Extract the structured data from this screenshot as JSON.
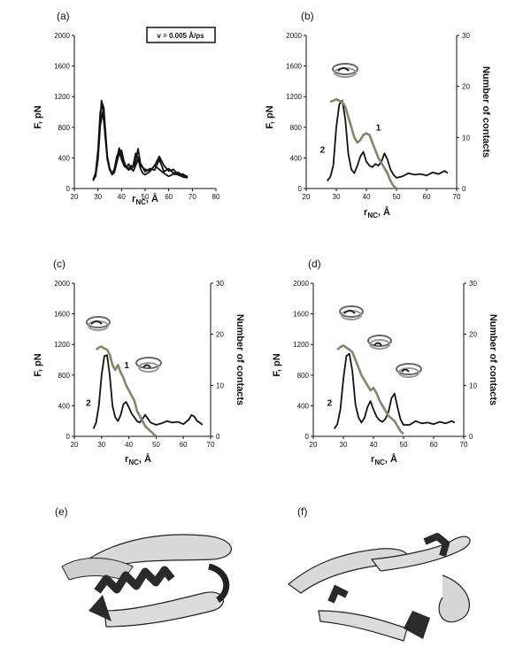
{
  "panel_labels": [
    "(a)",
    "(b)",
    "(c)",
    "(d)",
    "(e)",
    "(f)"
  ],
  "legend_box": "v = 0.005 Å/ps",
  "axes": {
    "force_label": "F, pN",
    "contacts_label": "Number of contacts",
    "x_label_main": "r",
    "x_label_sub": "NC",
    "x_label_tail": ", Å"
  },
  "curve_labels": {
    "one": "1",
    "two": "2"
  },
  "colors": {
    "force": "#111111",
    "contacts": "#7d8a6a",
    "ribbon": "#d6d6d6",
    "helix": "#2a2a2a"
  },
  "chart_data": [
    {
      "panel": "(a)",
      "type": "line",
      "xlim": [
        20,
        80
      ],
      "xticks": [
        20,
        30,
        40,
        50,
        60,
        70,
        80
      ],
      "ylim": [
        0,
        2000
      ],
      "yticks": [
        0,
        400,
        800,
        1200,
        1600,
        2000
      ],
      "series": [
        {
          "x": [
            28,
            29,
            30,
            31,
            31.5,
            32,
            33,
            34,
            35,
            36,
            37,
            38,
            39,
            40,
            41,
            42,
            43,
            44,
            45,
            46,
            47,
            48,
            49,
            50,
            52,
            54,
            56,
            58,
            60,
            62,
            64,
            66,
            68
          ],
          "y": [
            100,
            180,
            420,
            900,
            1150,
            1080,
            700,
            380,
            240,
            190,
            260,
            420,
            490,
            380,
            300,
            270,
            320,
            250,
            310,
            460,
            400,
            260,
            200,
            180,
            220,
            300,
            250,
            200,
            160,
            190,
            180,
            150,
            140
          ]
        },
        {
          "x": [
            28,
            29,
            30,
            31,
            32,
            32.5,
            33,
            34,
            35,
            36,
            37,
            38,
            39,
            40,
            41,
            42,
            43,
            44,
            45,
            46,
            47,
            48,
            50,
            52,
            54,
            56,
            58,
            60,
            62,
            64,
            66,
            68
          ],
          "y": [
            120,
            200,
            500,
            1000,
            1100,
            1050,
            820,
            420,
            260,
            200,
            240,
            380,
            530,
            420,
            330,
            280,
            260,
            300,
            280,
            350,
            520,
            330,
            220,
            260,
            240,
            380,
            220,
            260,
            200,
            210,
            170,
            160
          ]
        },
        {
          "x": [
            28,
            29,
            30,
            31,
            32,
            33,
            34,
            35,
            36,
            37,
            38,
            39,
            40,
            41,
            42,
            43,
            44,
            45,
            46,
            47,
            48,
            50,
            52,
            54,
            56,
            58,
            60,
            62,
            64,
            66,
            68
          ],
          "y": [
            110,
            160,
            380,
            820,
            1000,
            760,
            400,
            250,
            180,
            210,
            340,
            460,
            500,
            360,
            280,
            240,
            270,
            230,
            300,
            380,
            300,
            250,
            230,
            300,
            420,
            300,
            230,
            250,
            180,
            190,
            150
          ]
        }
      ]
    },
    {
      "panel": "(b)",
      "type": "line",
      "xlim": [
        20,
        70
      ],
      "xticks": [
        20,
        30,
        40,
        50,
        60,
        70
      ],
      "ylim": [
        0,
        2000
      ],
      "yticks": [
        0,
        400,
        800,
        1200,
        1600,
        2000
      ],
      "y2lim": [
        0,
        30
      ],
      "y2ticks": [
        0,
        10,
        20,
        30
      ],
      "series": [
        {
          "axis": "left",
          "x": [
            27,
            28,
            29,
            30,
            31,
            32,
            33,
            34,
            35,
            36,
            37,
            38,
            39,
            40,
            41,
            42,
            43,
            44,
            45,
            46,
            47,
            48,
            49,
            50,
            52,
            54,
            56,
            58,
            60,
            62,
            64,
            66,
            67
          ],
          "y": [
            100,
            150,
            300,
            800,
            1100,
            1150,
            900,
            450,
            250,
            200,
            300,
            420,
            480,
            350,
            300,
            280,
            320,
            300,
            350,
            460,
            380,
            250,
            180,
            140,
            160,
            200,
            180,
            190,
            170,
            210,
            190,
            230,
            200
          ]
        },
        {
          "axis": "right",
          "x": [
            28,
            29,
            30,
            31,
            32,
            33,
            34,
            35,
            36,
            37,
            38,
            39,
            40,
            41,
            42,
            43,
            44,
            45,
            46,
            47,
            48,
            49,
            50
          ],
          "y": [
            17,
            17.2,
            17.5,
            17.2,
            17,
            16,
            14,
            12,
            10,
            9,
            9.5,
            10.5,
            10.8,
            10.5,
            9,
            7.5,
            6,
            5,
            4,
            3,
            1.5,
            0.5,
            0
          ]
        }
      ],
      "annotations": {
        "label_1_at": [
          42,
          11
        ],
        "label_2_at": [
          28,
          7
        ]
      }
    },
    {
      "panel": "(c)",
      "type": "line",
      "xlim": [
        20,
        70
      ],
      "xticks": [
        20,
        30,
        40,
        50,
        60,
        70
      ],
      "ylim": [
        0,
        2000
      ],
      "yticks": [
        0,
        400,
        800,
        1200,
        1600,
        2000
      ],
      "y2lim": [
        0,
        30
      ],
      "y2ticks": [
        0,
        10,
        20,
        30
      ],
      "series": [
        {
          "axis": "left",
          "x": [
            27,
            28,
            29,
            30,
            31,
            32,
            33,
            34,
            35,
            36,
            37,
            38,
            39,
            40,
            41,
            42,
            43,
            44,
            45,
            46,
            48,
            50,
            52,
            54,
            56,
            58,
            60,
            62,
            63,
            64,
            65,
            66,
            67
          ],
          "y": [
            100,
            180,
            400,
            800,
            1050,
            1060,
            800,
            400,
            250,
            200,
            280,
            420,
            450,
            380,
            300,
            250,
            200,
            180,
            230,
            280,
            180,
            150,
            170,
            200,
            180,
            190,
            160,
            220,
            280,
            260,
            200,
            180,
            150
          ]
        },
        {
          "axis": "right",
          "x": [
            28,
            29,
            30,
            31,
            32,
            33,
            34,
            35,
            36,
            37,
            38,
            39,
            40,
            41,
            42,
            43,
            44,
            45,
            46,
            47,
            48,
            49,
            50
          ],
          "y": [
            17,
            17.4,
            17.6,
            17.2,
            17,
            16,
            14,
            13,
            14,
            12.5,
            11.5,
            10,
            9,
            8,
            7,
            5,
            4,
            3,
            2,
            1.5,
            1,
            0.5,
            0
          ]
        }
      ],
      "annotations": {
        "label_1_at": [
          37,
          13
        ],
        "label_2_at": [
          28,
          6
        ]
      }
    },
    {
      "panel": "(d)",
      "type": "line",
      "xlim": [
        20,
        70
      ],
      "xticks": [
        20,
        30,
        40,
        50,
        60,
        70
      ],
      "ylim": [
        0,
        2000
      ],
      "yticks": [
        0,
        400,
        800,
        1200,
        1600,
        2000
      ],
      "y2lim": [
        0,
        30
      ],
      "y2ticks": [
        0,
        10,
        20,
        30
      ],
      "series": [
        {
          "axis": "left",
          "x": [
            27,
            28,
            29,
            30,
            31,
            32,
            33,
            34,
            35,
            36,
            37,
            38,
            39,
            40,
            41,
            42,
            43,
            44,
            45,
            46,
            47,
            48,
            49,
            50,
            52,
            54,
            56,
            58,
            60,
            62,
            64,
            66,
            67
          ],
          "y": [
            100,
            160,
            350,
            750,
            1050,
            1080,
            850,
            420,
            250,
            180,
            240,
            380,
            460,
            350,
            260,
            210,
            190,
            230,
            320,
            500,
            560,
            380,
            220,
            150,
            150,
            200,
            170,
            180,
            160,
            190,
            170,
            200,
            180
          ]
        },
        {
          "axis": "right",
          "x": [
            28,
            29,
            30,
            31,
            32,
            33,
            34,
            35,
            36,
            37,
            38,
            39,
            40,
            41,
            42,
            43,
            44,
            45,
            46,
            47,
            48,
            49,
            50
          ],
          "y": [
            17,
            17.5,
            17.8,
            17.4,
            17,
            16.5,
            15,
            13.5,
            12,
            11,
            10,
            9,
            9.5,
            8.5,
            7,
            6,
            5,
            4,
            3.5,
            3,
            2,
            1,
            0.5
          ]
        }
      ],
      "annotations": {
        "label_2_at": [
          28,
          6
        ]
      }
    }
  ]
}
